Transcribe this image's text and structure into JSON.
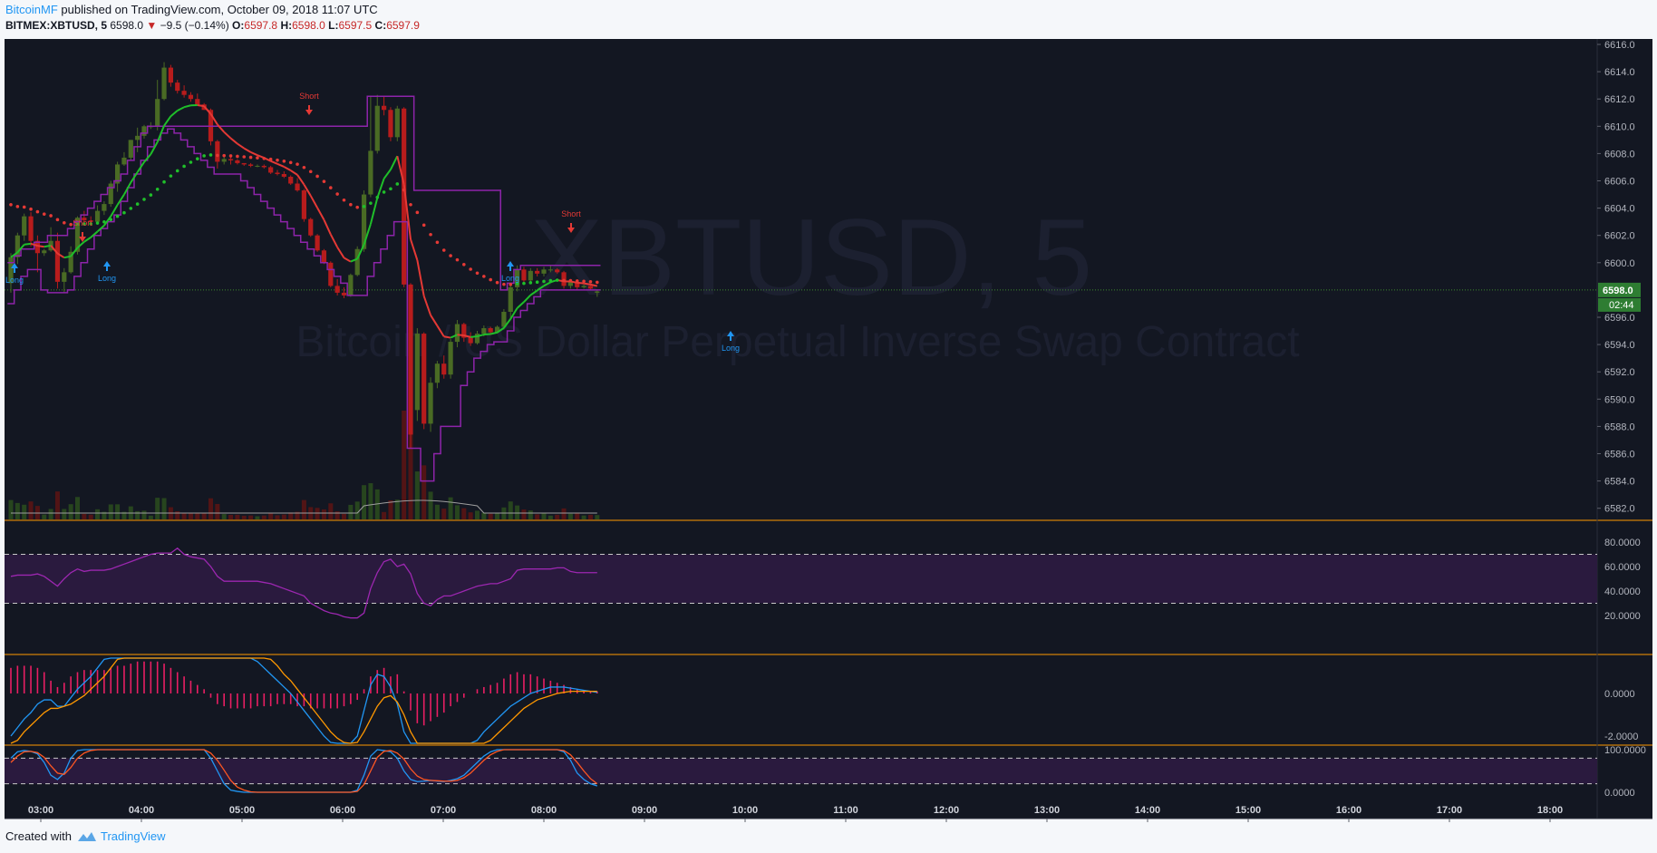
{
  "header": {
    "author": "BitcoinMF",
    "published_text": " published on TradingView.com, October 09, 2018 11:07 UTC",
    "symbol": "BITMEX:XBTUSD, 5",
    "last_price": "6598.0",
    "change_arrow": "▼",
    "change": "−9.5 (−0.14%)",
    "o_label": "O:",
    "o_value": "6597.8",
    "h_label": "H:",
    "h_value": "6598.0",
    "l_label": "L:",
    "l_value": "6597.5",
    "c_label": "C:",
    "c_value": "6597.9"
  },
  "watermark": {
    "symbol": "XBTUSD, 5",
    "description": "Bitcoin / US Dollar Perpetual Inverse Swap Contract"
  },
  "price_axis": {
    "labels": [
      "6616.0",
      "6614.0",
      "6612.0",
      "6610.0",
      "6608.0",
      "6606.0",
      "6604.0",
      "6602.0",
      "6600.0",
      "6596.0",
      "6594.0",
      "6592.0",
      "6590.0",
      "6588.0",
      "6586.0",
      "6584.0",
      "6582.0"
    ],
    "current_price": "6598.0",
    "countdown": "02:44"
  },
  "rsi_axis": {
    "labels": [
      "80.0000",
      "60.0000",
      "40.0000",
      "20.0000"
    ]
  },
  "macd_axis": {
    "labels": [
      "0.0000",
      "-2.0000"
    ]
  },
  "stoch_axis": {
    "labels": [
      "100.0000",
      "0.0000"
    ]
  },
  "time_axis": {
    "labels": [
      "03:00",
      "04:00",
      "05:00",
      "06:00",
      "07:00",
      "08:00",
      "09:00",
      "10:00",
      "11:00",
      "12:00",
      "13:00",
      "14:00",
      "15:00",
      "16:00",
      "17:00",
      "18:00"
    ]
  },
  "signals": [
    {
      "label": "Long",
      "type": "long"
    },
    {
      "label": "Short",
      "type": "short"
    },
    {
      "label": "Long",
      "type": "long"
    },
    {
      "label": "Short",
      "type": "short"
    },
    {
      "label": "Long",
      "type": "long"
    },
    {
      "label": "Short",
      "type": "short"
    },
    {
      "label": "Long",
      "type": "long"
    }
  ],
  "footer": {
    "created_with": "Created with",
    "brand": "TradingView"
  },
  "colors": {
    "background": "#131722",
    "bull": "#4a6b24",
    "bear": "#b71c1c",
    "purple": "#8e24aa",
    "ma_green": "#1fbf2a",
    "ma_red": "#e53935",
    "orange": "#ff9800",
    "blue": "#2196f3",
    "rsi_band": "#2a1a3e"
  },
  "chart_data": {
    "type": "candlestick",
    "interval": "5",
    "price_range": [
      6581,
      6616.5
    ],
    "candles": [
      [
        6598.5,
        6600.7,
        6597.8,
        6600.4
      ],
      [
        6600.4,
        6602.2,
        6599.9,
        6602
      ],
      [
        6602,
        6603.6,
        6601.6,
        6603.4
      ],
      [
        6603.4,
        6603.7,
        6601.2,
        6601.6
      ],
      [
        6601.6,
        6602,
        6599.3,
        6600.7
      ],
      [
        6600.7,
        6601,
        6600.5,
        6600.9
      ],
      [
        6600.9,
        6602.6,
        6600.8,
        6601.6
      ],
      [
        6601.6,
        6602.2,
        6598.1,
        6598.6
      ],
      [
        6598.6,
        6599.6,
        6597.8,
        6599.3
      ],
      [
        6599.3,
        6601.2,
        6599.2,
        6600.8
      ],
      [
        6600.8,
        6603.4,
        6600.6,
        6603.3
      ],
      [
        6603.3,
        6603.8,
        6603,
        6603.1
      ],
      [
        6603.1,
        6603.4,
        6602.7,
        6603
      ],
      [
        6603,
        6604.2,
        6602.8,
        6603.8
      ],
      [
        6603.8,
        6604.5,
        6603.5,
        6604.3
      ],
      [
        6604.3,
        6606,
        6604.1,
        6605.8
      ],
      [
        6605.8,
        6607.4,
        6605.2,
        6607.2
      ],
      [
        6607.2,
        6608.1,
        6607.1,
        6607.7
      ],
      [
        6607.7,
        6609,
        6607.5,
        6609
      ],
      [
        6609,
        6609.9,
        6608.1,
        6609.3
      ],
      [
        6609.3,
        6610.1,
        6609.1,
        6610
      ],
      [
        6610,
        6610.3,
        6609.8,
        6610
      ],
      [
        6610,
        6613.4,
        6609.7,
        6612
      ],
      [
        6612,
        6614.7,
        6611.9,
        6614.3
      ],
      [
        6614.3,
        6614.5,
        6612.9,
        6613.2
      ],
      [
        6613.2,
        6613.4,
        6612.4,
        6612.6
      ],
      [
        6612.6,
        6613,
        6612.1,
        6612.3
      ],
      [
        6612.3,
        6612.5,
        6611.8,
        6612
      ],
      [
        6612,
        6612.4,
        6611.6,
        6611.6
      ],
      [
        6611.6,
        6611.7,
        6611.2,
        6611.2
      ],
      [
        6611.2,
        6611.3,
        6608.6,
        6608.9
      ],
      [
        6608.9,
        6609,
        6606.9,
        6607.4
      ],
      [
        6607.4,
        6607.9,
        6607.2,
        6607.6
      ],
      [
        6607.6,
        6607.8,
        6607.2,
        6607.5
      ],
      [
        6607.5,
        6607.6,
        6607.2,
        6607.3
      ],
      [
        6607.3,
        6607.3,
        6607.1,
        6607.2
      ],
      [
        6607.2,
        6607.3,
        6607,
        6607.1
      ],
      [
        6607.1,
        6607.2,
        6607,
        6607.1
      ],
      [
        6607.1,
        6607.2,
        6606.9,
        6607
      ],
      [
        6607,
        6607.1,
        6606.5,
        6606.6
      ],
      [
        6606.6,
        6606.8,
        6606.4,
        6606.5
      ],
      [
        6606.5,
        6606.7,
        6606.2,
        6606.3
      ],
      [
        6606.3,
        6606.4,
        6605.7,
        6605.8
      ],
      [
        6605.8,
        6606.2,
        6605.2,
        6605.3
      ],
      [
        6605.3,
        6605.4,
        6603,
        6603.2
      ],
      [
        6603.2,
        6603.3,
        6601.9,
        6602
      ],
      [
        6602,
        6602.1,
        6600.8,
        6600.9
      ],
      [
        6600.9,
        6601,
        6599.9,
        6600
      ],
      [
        6600,
        6600.1,
        6598.2,
        6598.3
      ],
      [
        6598.3,
        6598.8,
        6597.6,
        6597.8
      ],
      [
        6597.8,
        6598.2,
        6597.4,
        6597.6
      ],
      [
        6597.6,
        6599.2,
        6597.5,
        6599.1
      ],
      [
        6599.1,
        6601.2,
        6599,
        6601
      ],
      [
        6601,
        6605.3,
        6600.8,
        6605
      ],
      [
        6605,
        6612.2,
        6604.8,
        6608.2
      ],
      [
        6608.2,
        6612.3,
        6608,
        6611.5
      ],
      [
        6611.5,
        6612.2,
        6610.8,
        6611.2
      ],
      [
        6611.2,
        6611.4,
        6608.9,
        6609.2
      ],
      [
        6609.2,
        6611.5,
        6608.9,
        6611.3
      ],
      [
        6611.3,
        6611.4,
        6598.2,
        6598.4
      ],
      [
        6598.4,
        6598.5,
        6586.4,
        6587.4
      ],
      [
        6589.2,
        6595.2,
        6588.4,
        6594.8
      ],
      [
        6594.8,
        6594.9,
        6587.8,
        6588.2
      ],
      [
        6588.2,
        6591.6,
        6587.6,
        6591.2
      ],
      [
        6591.2,
        6592.8,
        6590.8,
        6592.6
      ],
      [
        6592.6,
        6593.2,
        6591.5,
        6591.8
      ],
      [
        6591.8,
        6594.4,
        6591.5,
        6594.2
      ],
      [
        6594.2,
        6595.8,
        6593.8,
        6595.5
      ],
      [
        6595.5,
        6595.6,
        6594.2,
        6594.5
      ],
      [
        6594.5,
        6594.9,
        6593.9,
        6594.1
      ],
      [
        6594.1,
        6595,
        6594,
        6594.8
      ],
      [
        6594.8,
        6595.4,
        6594.6,
        6595.2
      ],
      [
        6595.2,
        6595.3,
        6594.7,
        6594.9
      ],
      [
        6594.9,
        6595.4,
        6594.8,
        6595.3
      ],
      [
        6595.3,
        6596.6,
        6595.1,
        6596.4
      ],
      [
        6596.4,
        6598.4,
        6595.9,
        6598.2
      ],
      [
        6598.2,
        6599.8,
        6597.9,
        6599.5
      ],
      [
        6599.5,
        6599.7,
        6598.4,
        6598.7
      ],
      [
        6598.7,
        6599.6,
        6598.5,
        6599.4
      ],
      [
        6599.4,
        6599.6,
        6599,
        6599.2
      ],
      [
        6599.2,
        6599.7,
        6599,
        6599.5
      ],
      [
        6599.5,
        6599.8,
        6599.3,
        6599.5
      ],
      [
        6599.5,
        6599.6,
        6599.2,
        6599.3
      ],
      [
        6599.3,
        6599.4,
        6598.1,
        6598.3
      ],
      [
        6598.3,
        6598.7,
        6598.1,
        6598.6
      ],
      [
        6598.6,
        6598.7,
        6598,
        6598.2
      ],
      [
        6598.2,
        6598.4,
        6598.1,
        6598.3
      ],
      [
        6598.3,
        6598.4,
        6598,
        6598.1
      ],
      [
        6597.8,
        6598,
        6597.5,
        6597.9
      ]
    ]
  }
}
